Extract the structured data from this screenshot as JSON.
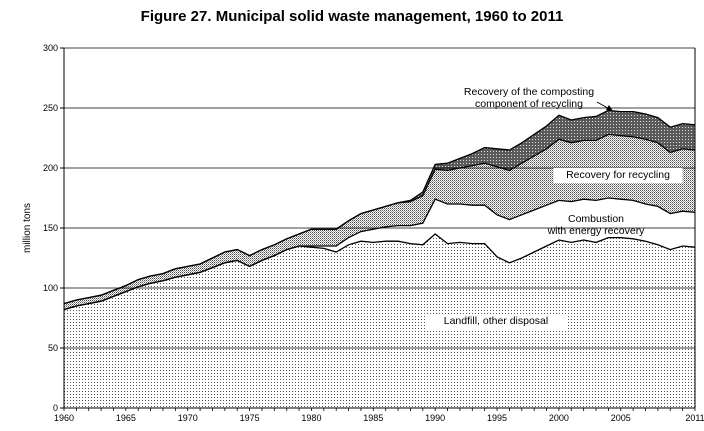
{
  "chart_data": {
    "type": "area",
    "title": "Figure 27. Municipal solid waste management, 1960 to 2011",
    "ylabel": "million tons",
    "xlabel": "",
    "ylim": [
      0,
      300
    ],
    "xlim": [
      1960,
      2011
    ],
    "y_ticks": [
      "0",
      "50",
      "100",
      "150",
      "200",
      "250",
      "300"
    ],
    "x_ticks": [
      {
        "year": 1960,
        "label": "1960"
      },
      {
        "year": 1965,
        "label": "1965"
      },
      {
        "year": 1970,
        "label": "1970"
      },
      {
        "year": 1975,
        "label": "1975"
      },
      {
        "year": 1980,
        "label": "1980"
      },
      {
        "year": 1985,
        "label": "1985"
      },
      {
        "year": 1990,
        "label": "1990"
      },
      {
        "year": 1995,
        "label": "1995"
      },
      {
        "year": 2000,
        "label": "2000"
      },
      {
        "year": 2005,
        "label": "2005"
      },
      {
        "year": 2011,
        "label": "2011"
      }
    ],
    "grid": "horizontal",
    "stacked": true,
    "x": [
      1960,
      1961,
      1962,
      1963,
      1964,
      1965,
      1966,
      1967,
      1968,
      1969,
      1970,
      1971,
      1972,
      1973,
      1974,
      1975,
      1976,
      1977,
      1978,
      1979,
      1980,
      1981,
      1982,
      1983,
      1984,
      1985,
      1986,
      1987,
      1988,
      1989,
      1990,
      1991,
      1992,
      1993,
      1994,
      1995,
      1996,
      1997,
      1998,
      1999,
      2000,
      2001,
      2002,
      2003,
      2004,
      2005,
      2006,
      2007,
      2008,
      2009,
      2010,
      2011
    ],
    "series": [
      {
        "name": "Landfill, other disposal",
        "pattern": "dots-light",
        "values": [
          82,
          85,
          87,
          89,
          93,
          97,
          101,
          104,
          106,
          109,
          111,
          113,
          117,
          121,
          123,
          118,
          123,
          127,
          132,
          135,
          134,
          133,
          130,
          136,
          139,
          138,
          139,
          139,
          137,
          136,
          145,
          137,
          138,
          137,
          137,
          126,
          121,
          125,
          130,
          135,
          140,
          138,
          140,
          138,
          142,
          142,
          141,
          139,
          136,
          132,
          135,
          134
        ]
      },
      {
        "name": "Combustion with energy recovery",
        "pattern": "white",
        "values": [
          0,
          0,
          0,
          0,
          0,
          0,
          0,
          0,
          0,
          0,
          0,
          0,
          0,
          0,
          0,
          0,
          0,
          0,
          0,
          0,
          1,
          2,
          5,
          6,
          8,
          11,
          12,
          13,
          15,
          18,
          29,
          33,
          32,
          32,
          32,
          35,
          36,
          36,
          35,
          34,
          33,
          34,
          34,
          35,
          33,
          32,
          32,
          31,
          32,
          30,
          29,
          29
        ]
      },
      {
        "name": "Recovery for recycling",
        "pattern": "dots-dense",
        "values": [
          5,
          5,
          5,
          5,
          5,
          5,
          6,
          6,
          6,
          7,
          7,
          7,
          8,
          9,
          9,
          9,
          9,
          9,
          9,
          10,
          14,
          14,
          14,
          14,
          15,
          16,
          17,
          19,
          20,
          23,
          25,
          28,
          30,
          33,
          35,
          40,
          41,
          43,
          45,
          47,
          51,
          49,
          49,
          50,
          53,
          53,
          53,
          54,
          53,
          51,
          52,
          52
        ]
      },
      {
        "name": "Recovery of the composting component of recycling",
        "pattern": "crosshatch",
        "values": [
          0,
          0,
          0,
          0,
          0,
          0,
          0,
          0,
          0,
          0,
          0,
          0,
          0,
          0,
          0,
          0,
          0,
          0,
          0,
          0,
          0,
          0,
          0,
          0,
          0,
          0,
          0,
          0,
          1,
          3,
          4,
          6,
          8,
          10,
          13,
          15,
          17,
          17,
          18,
          19,
          20,
          19,
          19,
          20,
          20,
          20,
          21,
          21,
          21,
          21,
          21,
          21
        ]
      }
    ],
    "annotations": {
      "landfill": [
        "Landfill, other disposal"
      ],
      "combustion": [
        "Combustion",
        "with energy recovery"
      ],
      "recycling": [
        "Recovery for recycling"
      ],
      "composting": [
        "Recovery of the composting",
        "component of recycling"
      ]
    }
  }
}
